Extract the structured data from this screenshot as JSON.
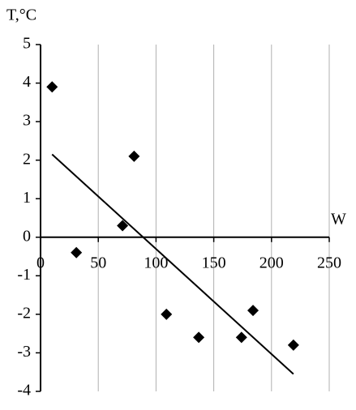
{
  "chart_data": {
    "type": "scatter",
    "x_label": "W",
    "y_label": "T,°C",
    "x": [
      10,
      31,
      71,
      81,
      109,
      137,
      174,
      184,
      219
    ],
    "values": [
      3.9,
      -0.4,
      0.3,
      2.1,
      -2.0,
      -2.6,
      -2.6,
      -1.9,
      -2.8
    ],
    "color": "#000000",
    "trendline": {
      "x": [
        10,
        219
      ],
      "values": [
        2.15,
        -3.55
      ],
      "color": "#000000"
    },
    "xlim": [
      0,
      250
    ],
    "xticks": [
      0,
      50,
      100,
      150,
      200,
      250
    ],
    "ylim": [
      -4,
      5
    ],
    "yticks": [
      -4,
      -3,
      -2,
      -1,
      0,
      1,
      2,
      3,
      4,
      5
    ],
    "grid": true
  }
}
